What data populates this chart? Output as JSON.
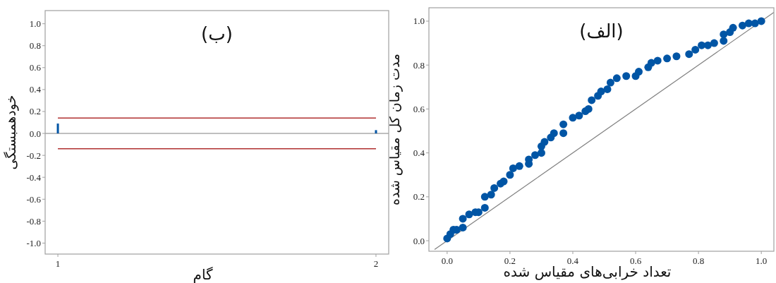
{
  "chart_data": [
    {
      "type": "bar",
      "title": "(ب)",
      "xlabel": "گام",
      "ylabel": "خودهمبستگی",
      "x": [
        1,
        2
      ],
      "series": [
        {
          "color": "#0055a5",
          "values": [
            0.09,
            0.03
          ]
        }
      ],
      "xlim": [
        0.96,
        2.04
      ],
      "ylim": [
        -1.1,
        1.12
      ],
      "xticks": [
        1,
        2
      ],
      "yticks": [
        {
          "value": -1.0,
          "label": "-1.0"
        },
        {
          "value": -0.8,
          "label": "-0.8"
        },
        {
          "value": -0.6,
          "label": "-0.6"
        },
        {
          "value": -0.4,
          "label": "-0.4"
        },
        {
          "value": -0.2,
          "label": "-0.2"
        },
        {
          "value": 0,
          "label": "0.0"
        },
        {
          "value": 0.2,
          "label": "0.2"
        },
        {
          "value": 0.4,
          "label": "0.4"
        },
        {
          "value": 0.6,
          "label": "0.6"
        },
        {
          "value": 0.8,
          "label": "0.8"
        },
        {
          "value": 1.0,
          "label": "1.0"
        }
      ],
      "ref_lines": [
        {
          "axis": "y",
          "value": 0.14,
          "color": "#b03030"
        },
        {
          "axis": "y",
          "value": -0.14,
          "color": "#b03030"
        },
        {
          "axis": "y",
          "value": 0,
          "color": "#808080"
        }
      ]
    },
    {
      "type": "scatter",
      "title": "(الف)",
      "xlabel": "تعداد خرابی‌های مقیاس شده",
      "ylabel": "مدت زمان کل مقیاس شده",
      "series": [
        {
          "type": "line",
          "color": "#808080",
          "x": [
            -0.04,
            1.04
          ],
          "values": [
            -0.04,
            1.04
          ]
        },
        {
          "marker": "circle",
          "color": "#0055a5",
          "x": [
            0.0,
            0.01,
            0.02,
            0.03,
            0.05,
            0.05,
            0.07,
            0.09,
            0.1,
            0.12,
            0.12,
            0.14,
            0.15,
            0.17,
            0.18,
            0.2,
            0.21,
            0.23,
            0.26,
            0.26,
            0.28,
            0.3,
            0.3,
            0.31,
            0.33,
            0.34,
            0.37,
            0.37,
            0.4,
            0.42,
            0.44,
            0.45,
            0.46,
            0.48,
            0.49,
            0.51,
            0.52,
            0.54,
            0.57,
            0.6,
            0.61,
            0.64,
            0.65,
            0.67,
            0.7,
            0.73,
            0.77,
            0.79,
            0.81,
            0.83,
            0.85,
            0.88,
            0.88,
            0.9,
            0.91,
            0.94,
            0.96,
            0.98,
            1.0
          ],
          "values": [
            0.01,
            0.03,
            0.05,
            0.05,
            0.06,
            0.1,
            0.12,
            0.13,
            0.13,
            0.15,
            0.2,
            0.21,
            0.24,
            0.26,
            0.27,
            0.3,
            0.33,
            0.34,
            0.35,
            0.37,
            0.39,
            0.4,
            0.43,
            0.45,
            0.47,
            0.49,
            0.49,
            0.53,
            0.56,
            0.57,
            0.59,
            0.6,
            0.64,
            0.66,
            0.68,
            0.69,
            0.72,
            0.74,
            0.75,
            0.75,
            0.77,
            0.79,
            0.81,
            0.82,
            0.83,
            0.84,
            0.85,
            0.87,
            0.89,
            0.89,
            0.9,
            0.91,
            0.94,
            0.95,
            0.97,
            0.98,
            0.99,
            0.99,
            1.0
          ]
        }
      ],
      "xlim": [
        -0.058,
        1.04
      ],
      "ylim": [
        -0.048,
        1.061
      ],
      "xticks": [
        {
          "value": 0,
          "label": "0.0"
        },
        {
          "value": 0.2,
          "label": "0.2"
        },
        {
          "value": 0.4,
          "label": "0.4"
        },
        {
          "value": 0.6,
          "label": "0.6"
        },
        {
          "value": 0.8,
          "label": "0.8"
        },
        {
          "value": 1.0,
          "label": "1.0"
        }
      ],
      "yticks": [
        {
          "value": 0,
          "label": "0.0"
        },
        {
          "value": 0.2,
          "label": "0.2"
        },
        {
          "value": 0.4,
          "label": "0.4"
        },
        {
          "value": 0.6,
          "label": "0.6"
        },
        {
          "value": 0.8,
          "label": "0.8"
        },
        {
          "value": 1.0,
          "label": "1.0"
        }
      ]
    }
  ]
}
